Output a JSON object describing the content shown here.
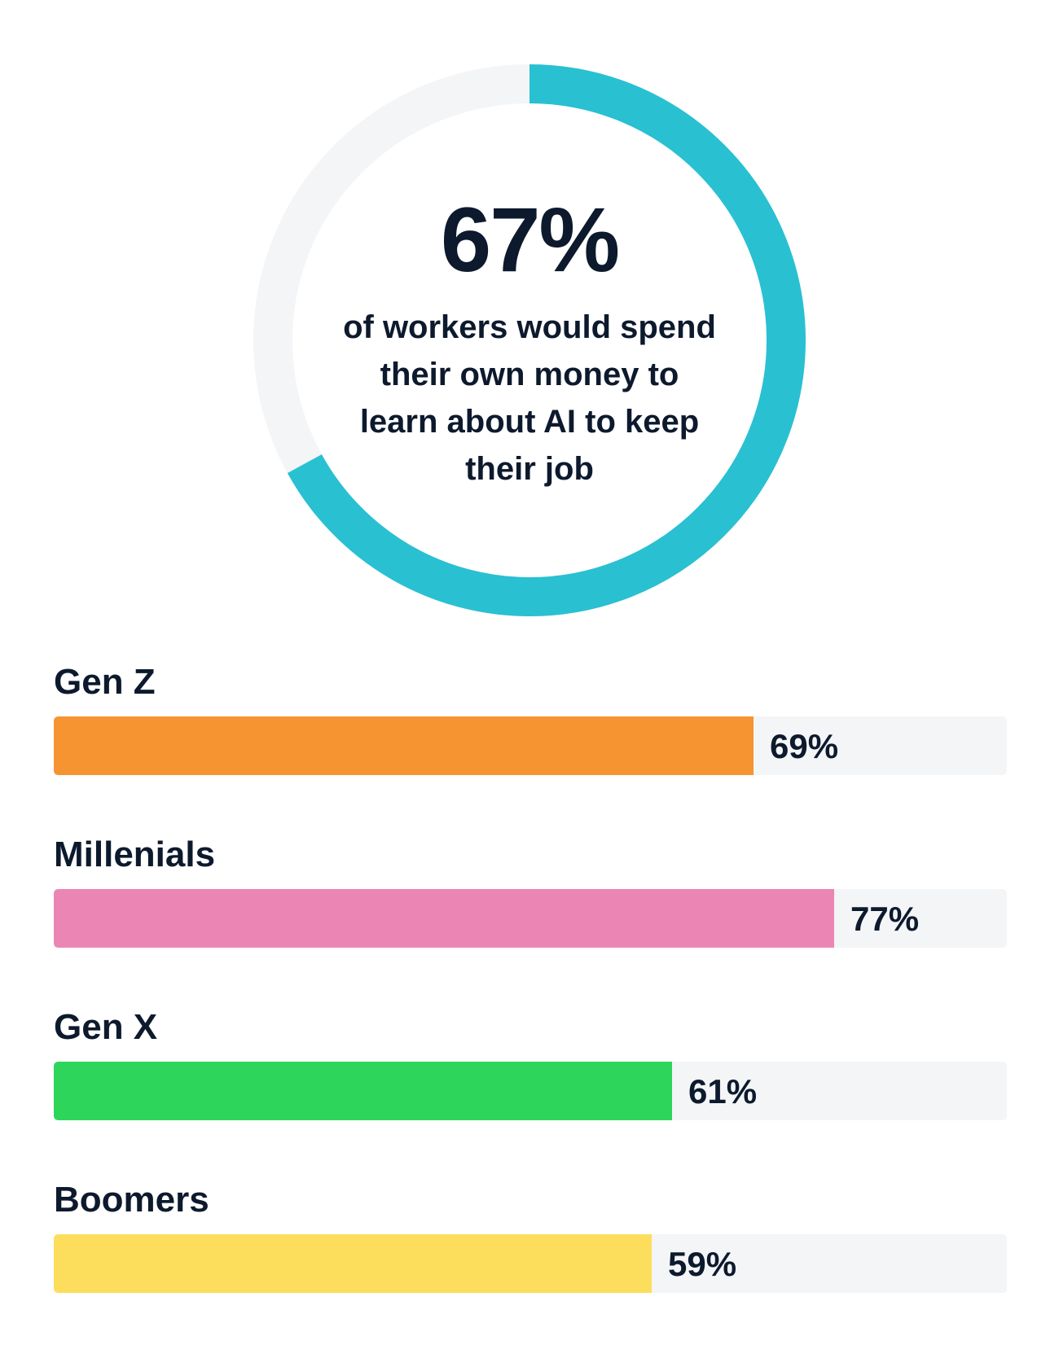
{
  "headline": {
    "value": "67%",
    "caption": "of workers would spend their own money to learn about AI to keep their job"
  },
  "chart_data": [
    {
      "type": "pie",
      "subtype": "donut",
      "values": [
        67,
        33
      ],
      "colors": [
        "#29c0d2",
        "#f4f5f7"
      ],
      "center_label": "67%",
      "caption": "of workers would spend their own money to learn about AI to keep their job"
    },
    {
      "type": "bar",
      "orientation": "horizontal",
      "categories": [
        "Gen Z",
        "Millenials",
        "Gen X",
        "Boomers"
      ],
      "values": [
        69,
        77,
        61,
        59
      ],
      "value_labels": [
        "69%",
        "77%",
        "61%",
        "59%"
      ],
      "colors": [
        "#f69432",
        "#eb86b4",
        "#2dd55b",
        "#fddd5c"
      ],
      "xlim": [
        0,
        94
      ],
      "track_color": "#f4f5f7"
    }
  ]
}
